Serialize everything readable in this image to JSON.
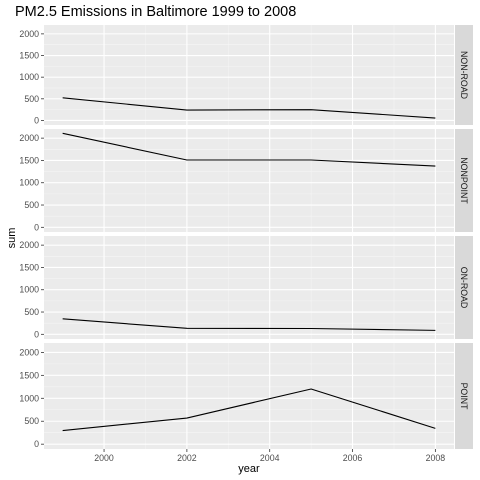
{
  "chart_data": {
    "type": "line",
    "title": "PM2.5 Emissions in Baltimore 1999 to 2008",
    "xlabel": "year",
    "ylabel": "sum",
    "x": [
      1999,
      2002,
      2005,
      2008
    ],
    "xticks": [
      2000,
      2002,
      2004,
      2006,
      2008
    ],
    "xlim": [
      1998.55,
      2008.45
    ],
    "yticks": [
      0,
      500,
      1000,
      1500,
      2000
    ],
    "ylim": [
      -105,
      2205
    ],
    "grid": true,
    "legend": "none",
    "facets": [
      {
        "name": "NON-ROAD",
        "values": [
          522.94,
          240.85,
          248.93,
          55.82
        ]
      },
      {
        "name": "NONPOINT",
        "values": [
          2107.63,
          1509.5,
          1509.5,
          1373.21
        ]
      },
      {
        "name": "ON-ROAD",
        "values": [
          346.82,
          134.31,
          130.43,
          88.28
        ]
      },
      {
        "name": "POINT",
        "values": [
          296.8,
          569.26,
          1202.49,
          344.98
        ]
      }
    ],
    "colors": {
      "panel_background": "#ebebeb",
      "grid_major": "#ffffff",
      "strip_background": "#d9d9d9",
      "line": "#000000",
      "tick_text": "#4d4d4d"
    }
  }
}
